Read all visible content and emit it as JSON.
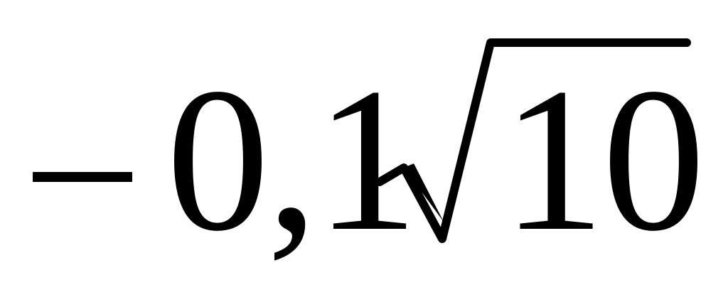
{
  "expression": {
    "sign": "−",
    "coefficient": "0,1",
    "radical_symbol": "√",
    "radicand": "10"
  }
}
